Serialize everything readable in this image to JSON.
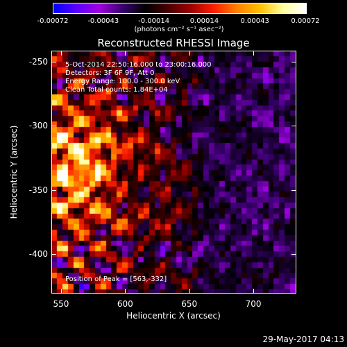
{
  "colorbar": {
    "ticks": [
      "-0.00072",
      "-0.00043",
      "-0.00014",
      "0.00014",
      "0.00043",
      "0.00072"
    ],
    "unit": "(photons cm⁻² s⁻¹ asec⁻²)",
    "colors": [
      "#0000ff",
      "#5a00ff",
      "#a000e0",
      "#3a0070",
      "#000000",
      "#4a0000",
      "#a00000",
      "#ff2000",
      "#ff8000",
      "#ffc000",
      "#ffffa0",
      "#ffffff"
    ]
  },
  "chart_data": {
    "type": "heatmap",
    "title": "Reconstructed RHESSI Image",
    "xlabel": "Heliocentric X (arcsec)",
    "ylabel": "Heliocentric Y (arcsec)",
    "xlim": [
      543,
      733
    ],
    "ylim": [
      -430,
      -242
    ],
    "xticks": [
      "550",
      "600",
      "650",
      "700"
    ],
    "xtick_values": [
      550,
      600,
      650,
      700
    ],
    "yticks": [
      "-250",
      "-300",
      "-350",
      "-400"
    ],
    "ytick_values": [
      -250,
      -300,
      -350,
      -400
    ],
    "zlim": [
      -0.00072,
      0.00072
    ],
    "peak": [
      563,
      -332
    ],
    "annotations": [
      "5-Oct-2014 22:50:16.000 to 23:00:16.000",
      "Detectors: 3F 6F 9F, Att 0",
      "Energy Range: 100.0 - 300.0 keV",
      "Clean    Total counts: 1.84E+04"
    ],
    "peak_label": "Position of Peak = [563,-332]"
  },
  "timestamp": "29-May-2017 04:13"
}
